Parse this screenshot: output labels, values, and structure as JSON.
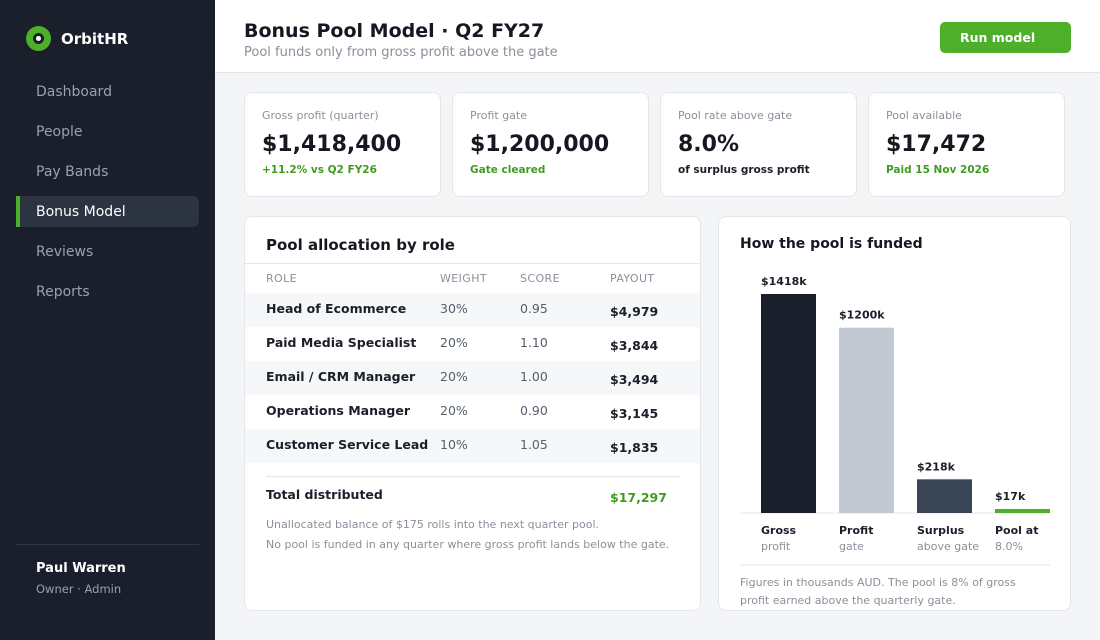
{
  "brand": {
    "name": "OrbitHR"
  },
  "nav": [
    {
      "label": "Dashboard",
      "active": false
    },
    {
      "label": "People",
      "active": false
    },
    {
      "label": "Pay Bands",
      "active": false
    },
    {
      "label": "Bonus Model",
      "active": true
    },
    {
      "label": "Reviews",
      "active": false
    },
    {
      "label": "Reports",
      "active": false
    }
  ],
  "user": {
    "name": "Paul Warren",
    "role": "Owner · Admin"
  },
  "header": {
    "title": "Bonus Pool Model · Q2 FY27",
    "subtitle": "Pool funds only from gross profit above the gate",
    "run_label": "Run model"
  },
  "kpis": [
    {
      "label": "Gross profit (quarter)",
      "value": "$1,418,400",
      "note": "+11.2% vs Q2 FY26",
      "note_tone": "green"
    },
    {
      "label": "Profit gate",
      "value": "$1,200,000",
      "note": "Gate cleared",
      "note_tone": "green"
    },
    {
      "label": "Pool rate above gate",
      "value": "8.0%",
      "note": "of surplus gross profit",
      "note_tone": "dark"
    },
    {
      "label": "Pool available",
      "value": "$17,472",
      "note": "Paid 15 Nov 2026",
      "note_tone": "green"
    }
  ],
  "allocation": {
    "title": "Pool allocation by role",
    "columns": {
      "role": "ROLE",
      "weight": "WEIGHT",
      "score": "SCORE",
      "payout": "PAYOUT"
    },
    "rows": [
      {
        "role": "Head of Ecommerce",
        "weight": "30%",
        "score": "0.95",
        "payout": "$4,979"
      },
      {
        "role": "Paid Media Specialist",
        "weight": "20%",
        "score": "1.10",
        "payout": "$3,844"
      },
      {
        "role": "Email / CRM Manager",
        "weight": "20%",
        "score": "1.00",
        "payout": "$3,494"
      },
      {
        "role": "Operations Manager",
        "weight": "20%",
        "score": "0.90",
        "payout": "$3,145"
      },
      {
        "role": "Customer Service Lead",
        "weight": "10%",
        "score": "1.05",
        "payout": "$1,835"
      }
    ],
    "total_label": "Total distributed",
    "total_value": "$17,297",
    "notes": [
      "Unallocated balance of $175 rolls into the next quarter pool.",
      "No pool is funded in any quarter where gross profit lands below the gate."
    ]
  },
  "funding": {
    "title": "How the pool is funded",
    "footnote": "Figures in thousands AUD. The pool is 8% of gross profit earned above the quarterly gate.",
    "chart_data": {
      "type": "bar",
      "categories": [
        "Gross profit",
        "Profit gate",
        "Surplus above gate",
        "Pool at 8.0%"
      ],
      "category_lines": [
        [
          "Gross",
          "profit"
        ],
        [
          "Profit",
          "gate"
        ],
        [
          "Surplus",
          "above gate"
        ],
        [
          "Pool at",
          "8.0%"
        ]
      ],
      "values": [
        1418,
        1200,
        218,
        17
      ],
      "data_labels": [
        "$1418k",
        "$1200k",
        "$218k",
        "$17k"
      ],
      "colors": [
        "#1a1f2b",
        "#c3c9d3",
        "#3a4556",
        "#4eb02a"
      ],
      "ylim": [
        0,
        1418
      ],
      "grid": false,
      "unit": "thousands AUD"
    }
  }
}
